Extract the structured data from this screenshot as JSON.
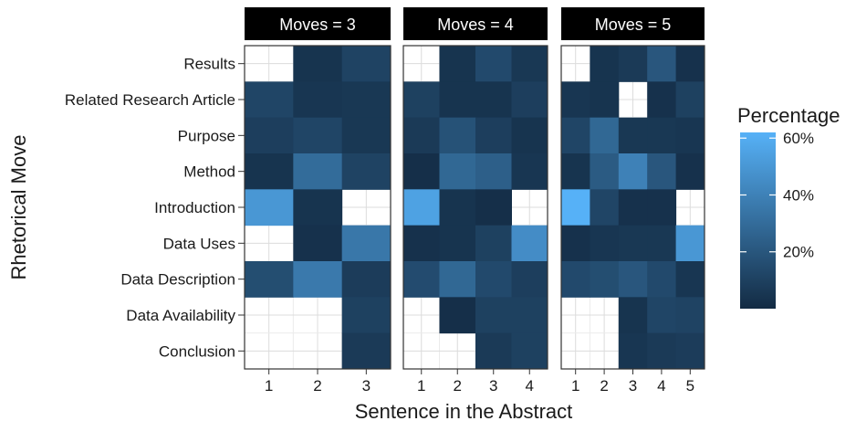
{
  "chart_data": {
    "type": "heatmap",
    "ylabel": "Rhetorical Move",
    "xlabel": "Sentence in the Abstract",
    "rows": [
      "Results",
      "Related Research Article",
      "Purpose",
      "Method",
      "Introduction",
      "Data Uses",
      "Data Description",
      "Data Availability",
      "Conclusion"
    ],
    "panels": [
      {
        "label": "Moves = 3",
        "x": [
          "1",
          "2",
          "3"
        ],
        "values": [
          [
            null,
            4,
            11
          ],
          [
            12,
            5,
            6
          ],
          [
            9,
            12,
            6
          ],
          [
            4,
            30,
            11
          ],
          [
            50,
            4,
            null
          ],
          [
            null,
            3,
            35
          ],
          [
            16,
            36,
            8
          ],
          [
            null,
            null,
            10
          ],
          [
            null,
            null,
            7
          ]
        ]
      },
      {
        "label": "Moves = 4",
        "x": [
          "1",
          "2",
          "3",
          "4"
        ],
        "values": [
          [
            null,
            4,
            14,
            6
          ],
          [
            10,
            4,
            4,
            9
          ],
          [
            7,
            18,
            9,
            4
          ],
          [
            2,
            28,
            24,
            5
          ],
          [
            55,
            4,
            2,
            null
          ],
          [
            3,
            4,
            10,
            45
          ],
          [
            15,
            28,
            14,
            9
          ],
          [
            null,
            2,
            10,
            10
          ],
          [
            null,
            null,
            7,
            10
          ]
        ]
      },
      {
        "label": "Moves = 5",
        "x": [
          "1",
          "2",
          "3",
          "4",
          "5"
        ],
        "values": [
          [
            null,
            4,
            7,
            20,
            3
          ],
          [
            5,
            4,
            null,
            3,
            10
          ],
          [
            12,
            28,
            6,
            6,
            5
          ],
          [
            4,
            22,
            40,
            20,
            3
          ],
          [
            62,
            12,
            3,
            3,
            null
          ],
          [
            3,
            5,
            6,
            6,
            50
          ],
          [
            14,
            16,
            20,
            14,
            5
          ],
          [
            null,
            null,
            4,
            12,
            11
          ],
          [
            null,
            null,
            5,
            7,
            8
          ]
        ]
      }
    ],
    "legend": {
      "title": "Percentage",
      "ticks": [
        "20%",
        "40%",
        "60%"
      ],
      "tick_values": [
        20,
        40,
        60
      ],
      "range": [
        0,
        62
      ],
      "color_low": "#132B43",
      "color_high": "#56B1F7"
    },
    "na_color": "#ffffff",
    "strip_color": "#000000"
  }
}
